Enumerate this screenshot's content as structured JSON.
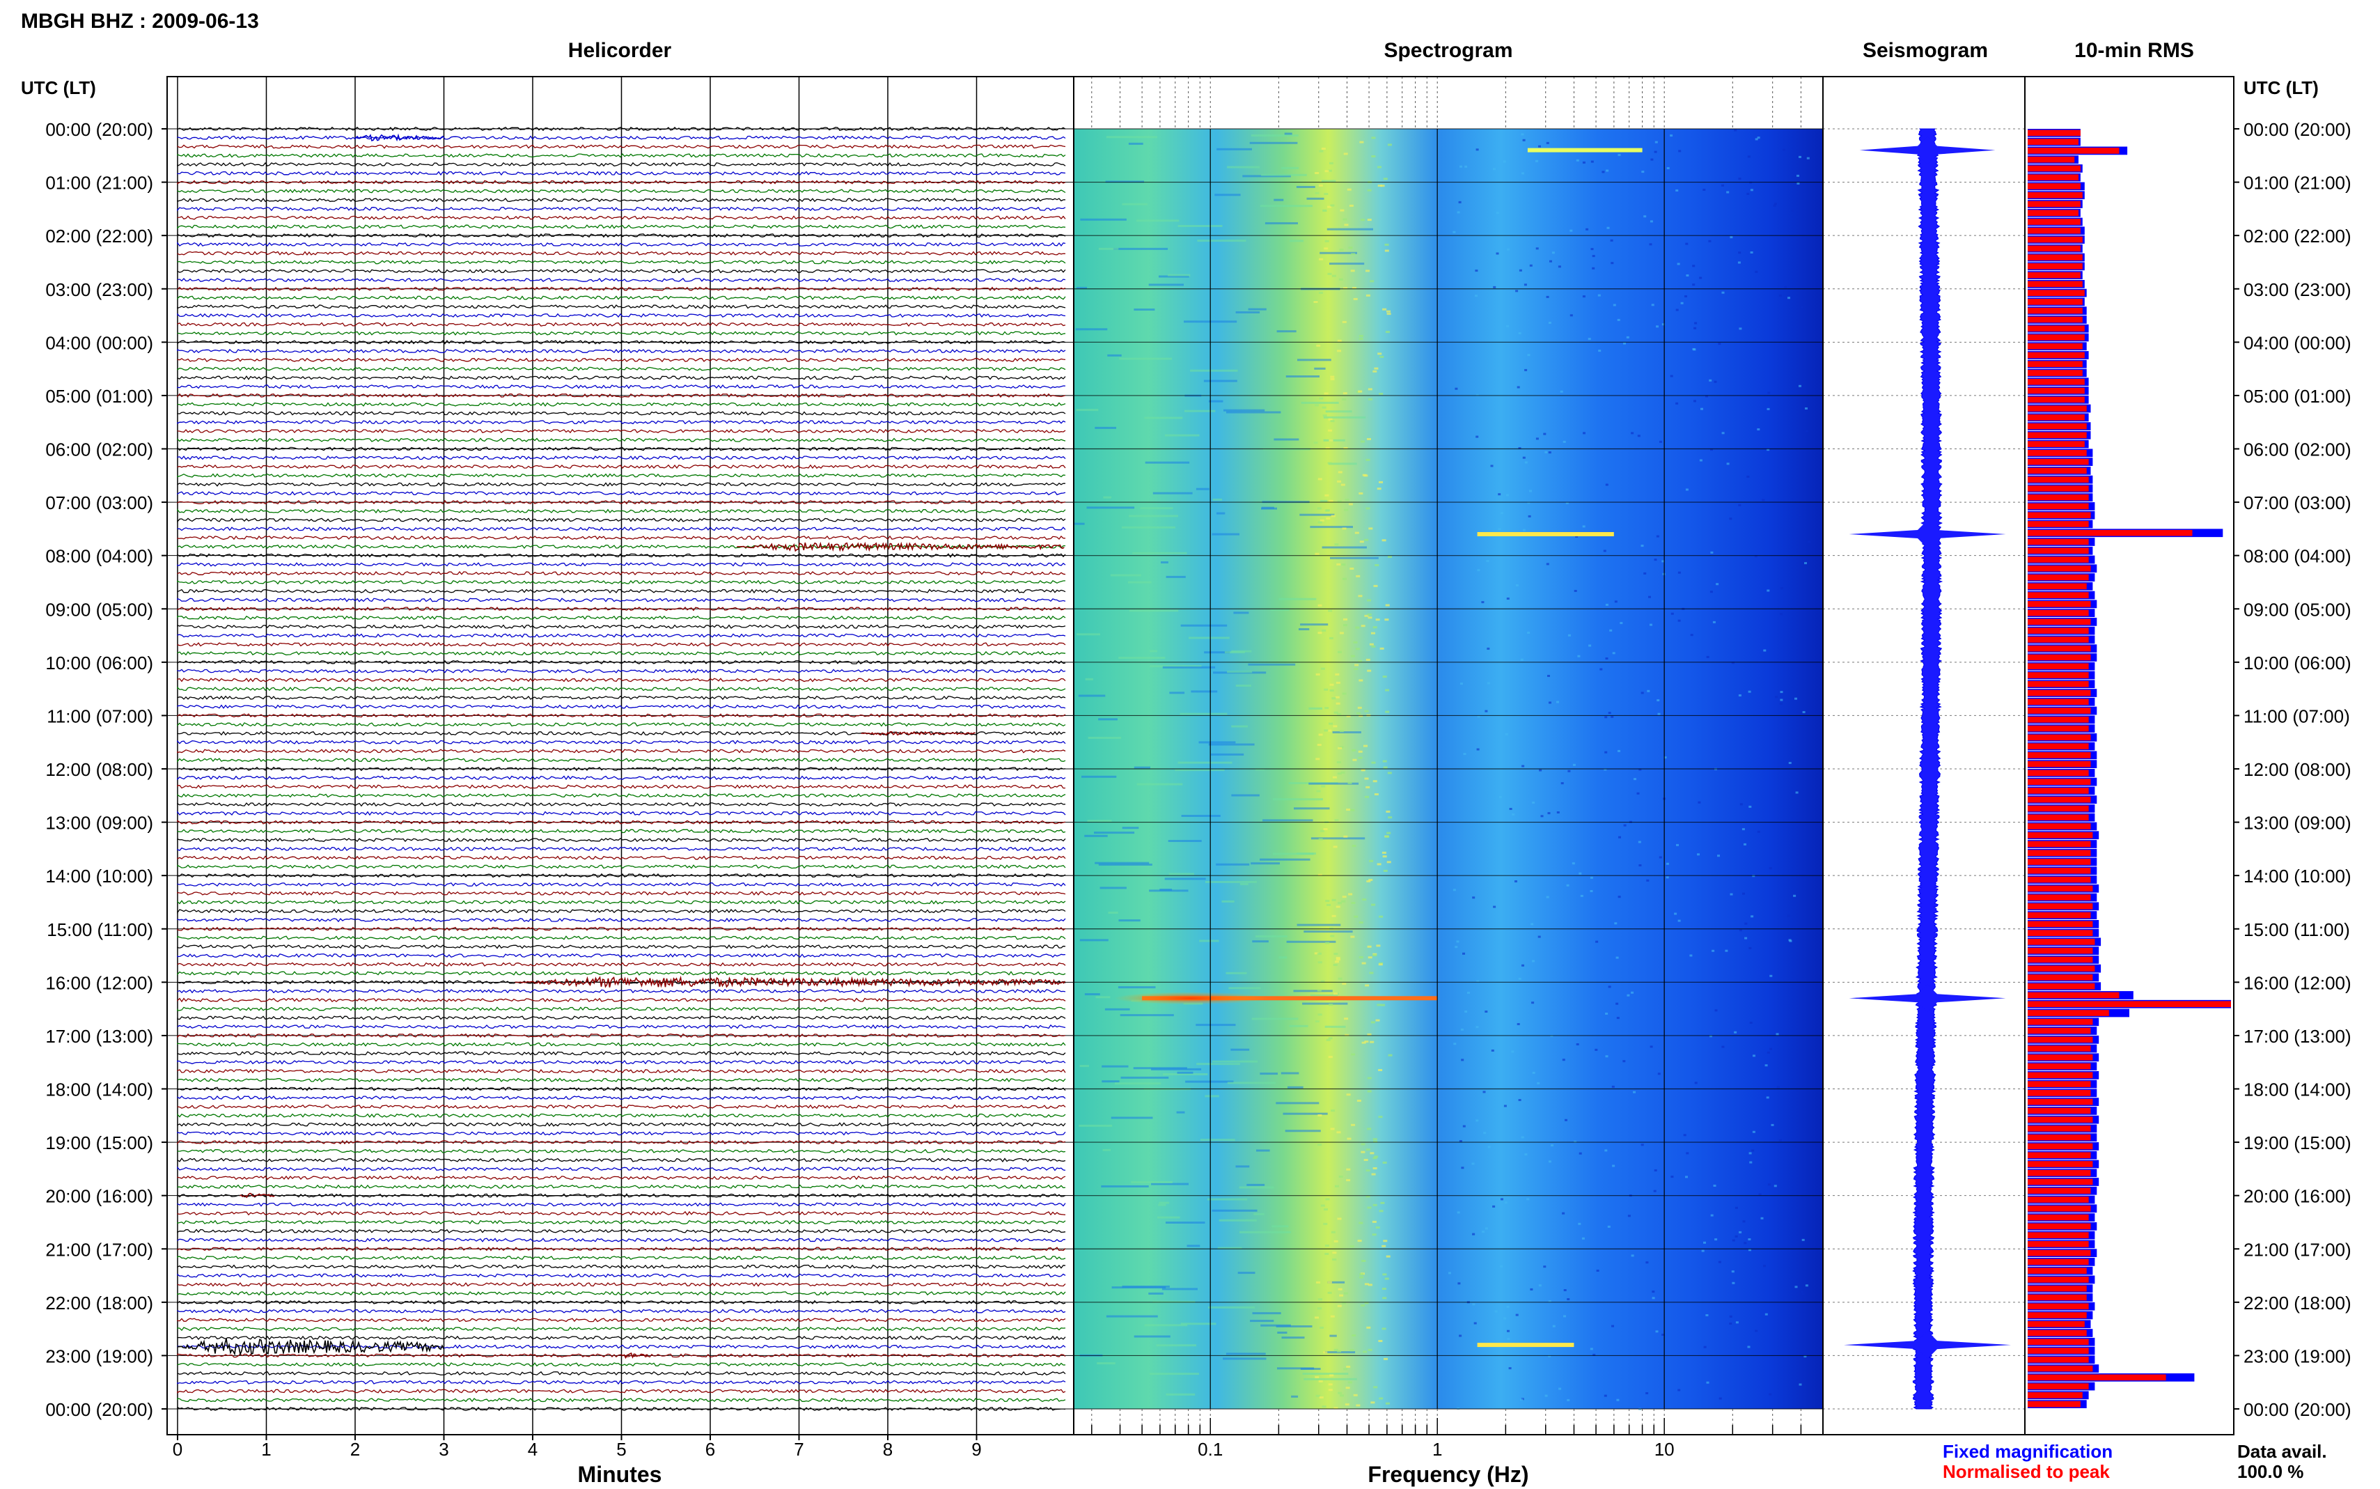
{
  "header": {
    "station_title": "MBGH BHZ : 2009-06-13"
  },
  "panels": {
    "helicorder": "Helicorder",
    "spectrogram": "Spectrogram",
    "seismogram": "Seismogram",
    "rms": "10-min RMS"
  },
  "axes": {
    "time_heading": "UTC (LT)",
    "minutes_label": "Minutes",
    "frequency_label": "Frequency (Hz)"
  },
  "legend": {
    "fixed": "Fixed magnification",
    "normalised": "Normalised to peak",
    "fixed_color": "#0000ff",
    "normalised_color": "#ff0000"
  },
  "availability": {
    "label": "Data avail.",
    "value": "100.0 %"
  },
  "chart_data": {
    "type": "heatmap",
    "time_ticks": [
      "00:00 (20:00)",
      "01:00 (21:00)",
      "02:00 (22:00)",
      "03:00 (23:00)",
      "04:00 (00:00)",
      "05:00 (01:00)",
      "06:00 (02:00)",
      "07:00 (03:00)",
      "08:00 (04:00)",
      "09:00 (05:00)",
      "10:00 (06:00)",
      "11:00 (07:00)",
      "12:00 (08:00)",
      "13:00 (09:00)",
      "14:00 (10:00)",
      "15:00 (11:00)",
      "16:00 (12:00)",
      "17:00 (13:00)",
      "18:00 (14:00)",
      "19:00 (15:00)",
      "20:00 (16:00)",
      "21:00 (17:00)",
      "22:00 (18:00)",
      "23:00 (19:00)",
      "00:00 (20:00)"
    ],
    "minutes_ticks": [
      "0",
      "1",
      "2",
      "3",
      "4",
      "5",
      "6",
      "7",
      "8",
      "9"
    ],
    "minutes_range": [
      0,
      10
    ],
    "frequency_ticks": [
      "0.1",
      "1",
      "10"
    ],
    "frequency_range_hz": [
      0.025,
      50
    ],
    "frequency_scale": "log",
    "helicorder_trace_colors": [
      "#000000",
      "#0000cc",
      "#8b0000",
      "#007700"
    ],
    "helicorder_events": [
      {
        "hour": 0,
        "row": 1,
        "start_min": 2.0,
        "end_min": 3.0,
        "amp": 0.5,
        "color": "#0000cc"
      },
      {
        "hour": 7,
        "row": 5,
        "start_min": 6.3,
        "end_min": 10,
        "amp": 0.7,
        "color": "#8b0000"
      },
      {
        "hour": 11,
        "row": 2,
        "start_min": 7.7,
        "end_min": 9.0,
        "amp": 0.3,
        "color": "#8b0000"
      },
      {
        "hour": 16,
        "row": 0,
        "start_min": 3.8,
        "end_min": 10,
        "amp": 0.9,
        "color": "#8b0000"
      },
      {
        "hour": 20,
        "row": 0,
        "start_min": 0.7,
        "end_min": 1.1,
        "amp": 0.4,
        "color": "#8b0000"
      },
      {
        "hour": 22,
        "row": 5,
        "start_min": 0.0,
        "end_min": 3.0,
        "amp": 1.4,
        "color": "#000000"
      },
      {
        "hour": 23,
        "row": 0,
        "start_min": 5.0,
        "end_min": 5.3,
        "amp": 0.5,
        "color": "#8b0000"
      }
    ],
    "spectrogram_events": [
      {
        "hour": 0.4,
        "f_start_hz": 2.5,
        "f_end_hz": 8.0,
        "color": "#e8ff60"
      },
      {
        "hour": 7.6,
        "f_start_hz": 1.5,
        "f_end_hz": 6.0,
        "color": "#ffe84a"
      },
      {
        "hour": 16.3,
        "f_start_hz": 0.05,
        "f_end_hz": 1.0,
        "color": "#ff6e1a"
      },
      {
        "hour": 22.8,
        "f_start_hz": 1.5,
        "f_end_hz": 4.0,
        "color": "#ffe84a"
      }
    ],
    "seismogram_spikes": [
      {
        "hour": 0.4,
        "size": 0.7
      },
      {
        "hour": 7.6,
        "size": 0.9
      },
      {
        "hour": 16.3,
        "size": 0.9
      },
      {
        "hour": 22.8,
        "size": 1.0
      }
    ],
    "rms_normalised": [
      0.26,
      0.25,
      0.45,
      0.23,
      0.26,
      0.25,
      0.26,
      0.27,
      0.26,
      0.25,
      0.26,
      0.26,
      0.27,
      0.26,
      0.27,
      0.27,
      0.26,
      0.27,
      0.28,
      0.27,
      0.27,
      0.27,
      0.28,
      0.28,
      0.27,
      0.28,
      0.27,
      0.27,
      0.28,
      0.28,
      0.28,
      0.29,
      0.28,
      0.29,
      0.29,
      0.28,
      0.29,
      0.3,
      0.29,
      0.3,
      0.3,
      0.3,
      0.3,
      0.31,
      0.3,
      0.81,
      0.3,
      0.3,
      0.3,
      0.31,
      0.3,
      0.29,
      0.3,
      0.31,
      0.3,
      0.31,
      0.3,
      0.3,
      0.31,
      0.31,
      0.3,
      0.3,
      0.3,
      0.31,
      0.3,
      0.31,
      0.3,
      0.3,
      0.31,
      0.3,
      0.31,
      0.31,
      0.3,
      0.31,
      0.3,
      0.31,
      0.3,
      0.3,
      0.31,
      0.32,
      0.31,
      0.31,
      0.31,
      0.31,
      0.31,
      0.32,
      0.31,
      0.32,
      0.31,
      0.32,
      0.32,
      0.33,
      0.32,
      0.32,
      0.33,
      0.32,
      0.33,
      0.45,
      1.0,
      0.4,
      0.32,
      0.31,
      0.32,
      0.31,
      0.32,
      0.31,
      0.32,
      0.31,
      0.31,
      0.32,
      0.31,
      0.32,
      0.31,
      0.31,
      0.32,
      0.31,
      0.32,
      0.31,
      0.32,
      0.31,
      0.3,
      0.31,
      0.3,
      0.31,
      0.3,
      0.3,
      0.31,
      0.3,
      0.29,
      0.3,
      0.29,
      0.29,
      0.3,
      0.29,
      0.28,
      0.29,
      0.3,
      0.3,
      0.3,
      0.32,
      0.68,
      0.3,
      0.27,
      0.26
    ],
    "rms_fixed": [
      0.26,
      0.26,
      0.49,
      0.25,
      0.27,
      0.26,
      0.28,
      0.28,
      0.27,
      0.26,
      0.27,
      0.28,
      0.28,
      0.27,
      0.28,
      0.28,
      0.27,
      0.28,
      0.29,
      0.28,
      0.29,
      0.29,
      0.3,
      0.3,
      0.29,
      0.3,
      0.29,
      0.29,
      0.3,
      0.3,
      0.3,
      0.31,
      0.3,
      0.31,
      0.31,
      0.3,
      0.32,
      0.32,
      0.31,
      0.32,
      0.32,
      0.32,
      0.33,
      0.33,
      0.32,
      0.96,
      0.33,
      0.32,
      0.33,
      0.34,
      0.33,
      0.32,
      0.33,
      0.34,
      0.33,
      0.34,
      0.33,
      0.33,
      0.34,
      0.34,
      0.33,
      0.33,
      0.33,
      0.34,
      0.33,
      0.34,
      0.33,
      0.33,
      0.34,
      0.33,
      0.34,
      0.34,
      0.33,
      0.34,
      0.33,
      0.34,
      0.33,
      0.33,
      0.34,
      0.35,
      0.34,
      0.34,
      0.34,
      0.34,
      0.34,
      0.35,
      0.34,
      0.35,
      0.34,
      0.35,
      0.35,
      0.36,
      0.35,
      0.35,
      0.36,
      0.35,
      0.36,
      0.52,
      1.0,
      0.5,
      0.35,
      0.34,
      0.35,
      0.34,
      0.35,
      0.34,
      0.35,
      0.34,
      0.34,
      0.35,
      0.34,
      0.35,
      0.34,
      0.34,
      0.35,
      0.34,
      0.35,
      0.34,
      0.35,
      0.34,
      0.33,
      0.34,
      0.33,
      0.34,
      0.33,
      0.33,
      0.34,
      0.33,
      0.32,
      0.33,
      0.32,
      0.32,
      0.33,
      0.32,
      0.31,
      0.32,
      0.33,
      0.33,
      0.33,
      0.35,
      0.82,
      0.33,
      0.3,
      0.29
    ]
  }
}
